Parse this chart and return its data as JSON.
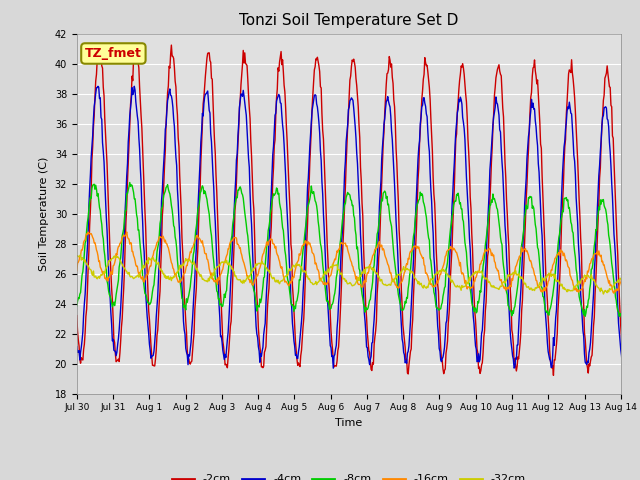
{
  "title": "Tonzi Soil Temperature Set D",
  "xlabel": "Time",
  "ylabel": "Soil Temperature (C)",
  "ylim": [
    18,
    42
  ],
  "yticks": [
    18,
    20,
    22,
    24,
    26,
    28,
    30,
    32,
    34,
    36,
    38,
    40,
    42
  ],
  "xtick_labels": [
    "Jul 30",
    "Jul 31",
    "Aug 1",
    "Aug 2",
    "Aug 3",
    "Aug 4",
    "Aug 5",
    "Aug 6",
    "Aug 7",
    "Aug 8",
    "Aug 9",
    "Aug 10",
    "Aug 11",
    "Aug 12",
    "Aug 13",
    "Aug 14"
  ],
  "legend_labels": [
    "-2cm",
    "-4cm",
    "-8cm",
    "-16cm",
    "-32cm"
  ],
  "line_colors": [
    "#cc0000",
    "#0000cc",
    "#00cc00",
    "#ff8800",
    "#cccc00"
  ],
  "annotation_text": "TZ_fmet",
  "annotation_bg": "#ffff99",
  "annotation_border": "#888800",
  "annotation_text_color": "#cc0000",
  "fig_facecolor": "#d8d8d8",
  "ax_facecolor": "#e0e0e0",
  "num_days": 15.5,
  "samples_per_day": 48,
  "series_2cm": {
    "mean_s": 30.5,
    "mean_e": 29.5,
    "amp_s": 10.5,
    "amp_e": 10.0,
    "phase": 0.0,
    "noise": 0.25
  },
  "series_4cm": {
    "mean_s": 29.5,
    "mean_e": 28.5,
    "amp_s": 9.0,
    "amp_e": 8.5,
    "phase": 0.35,
    "noise": 0.2
  },
  "series_8cm": {
    "mean_s": 28.0,
    "mean_e": 27.0,
    "amp_s": 4.0,
    "amp_e": 3.8,
    "phase": 0.85,
    "noise": 0.15
  },
  "series_16cm": {
    "mean_s": 27.2,
    "mean_e": 26.0,
    "amp_s": 1.5,
    "amp_e": 1.3,
    "phase": 1.8,
    "noise": 0.1
  },
  "series_32cm": {
    "mean_s": 26.5,
    "mean_e": 25.2,
    "amp_s": 0.7,
    "amp_e": 0.5,
    "phase": 3.5,
    "noise": 0.08
  }
}
